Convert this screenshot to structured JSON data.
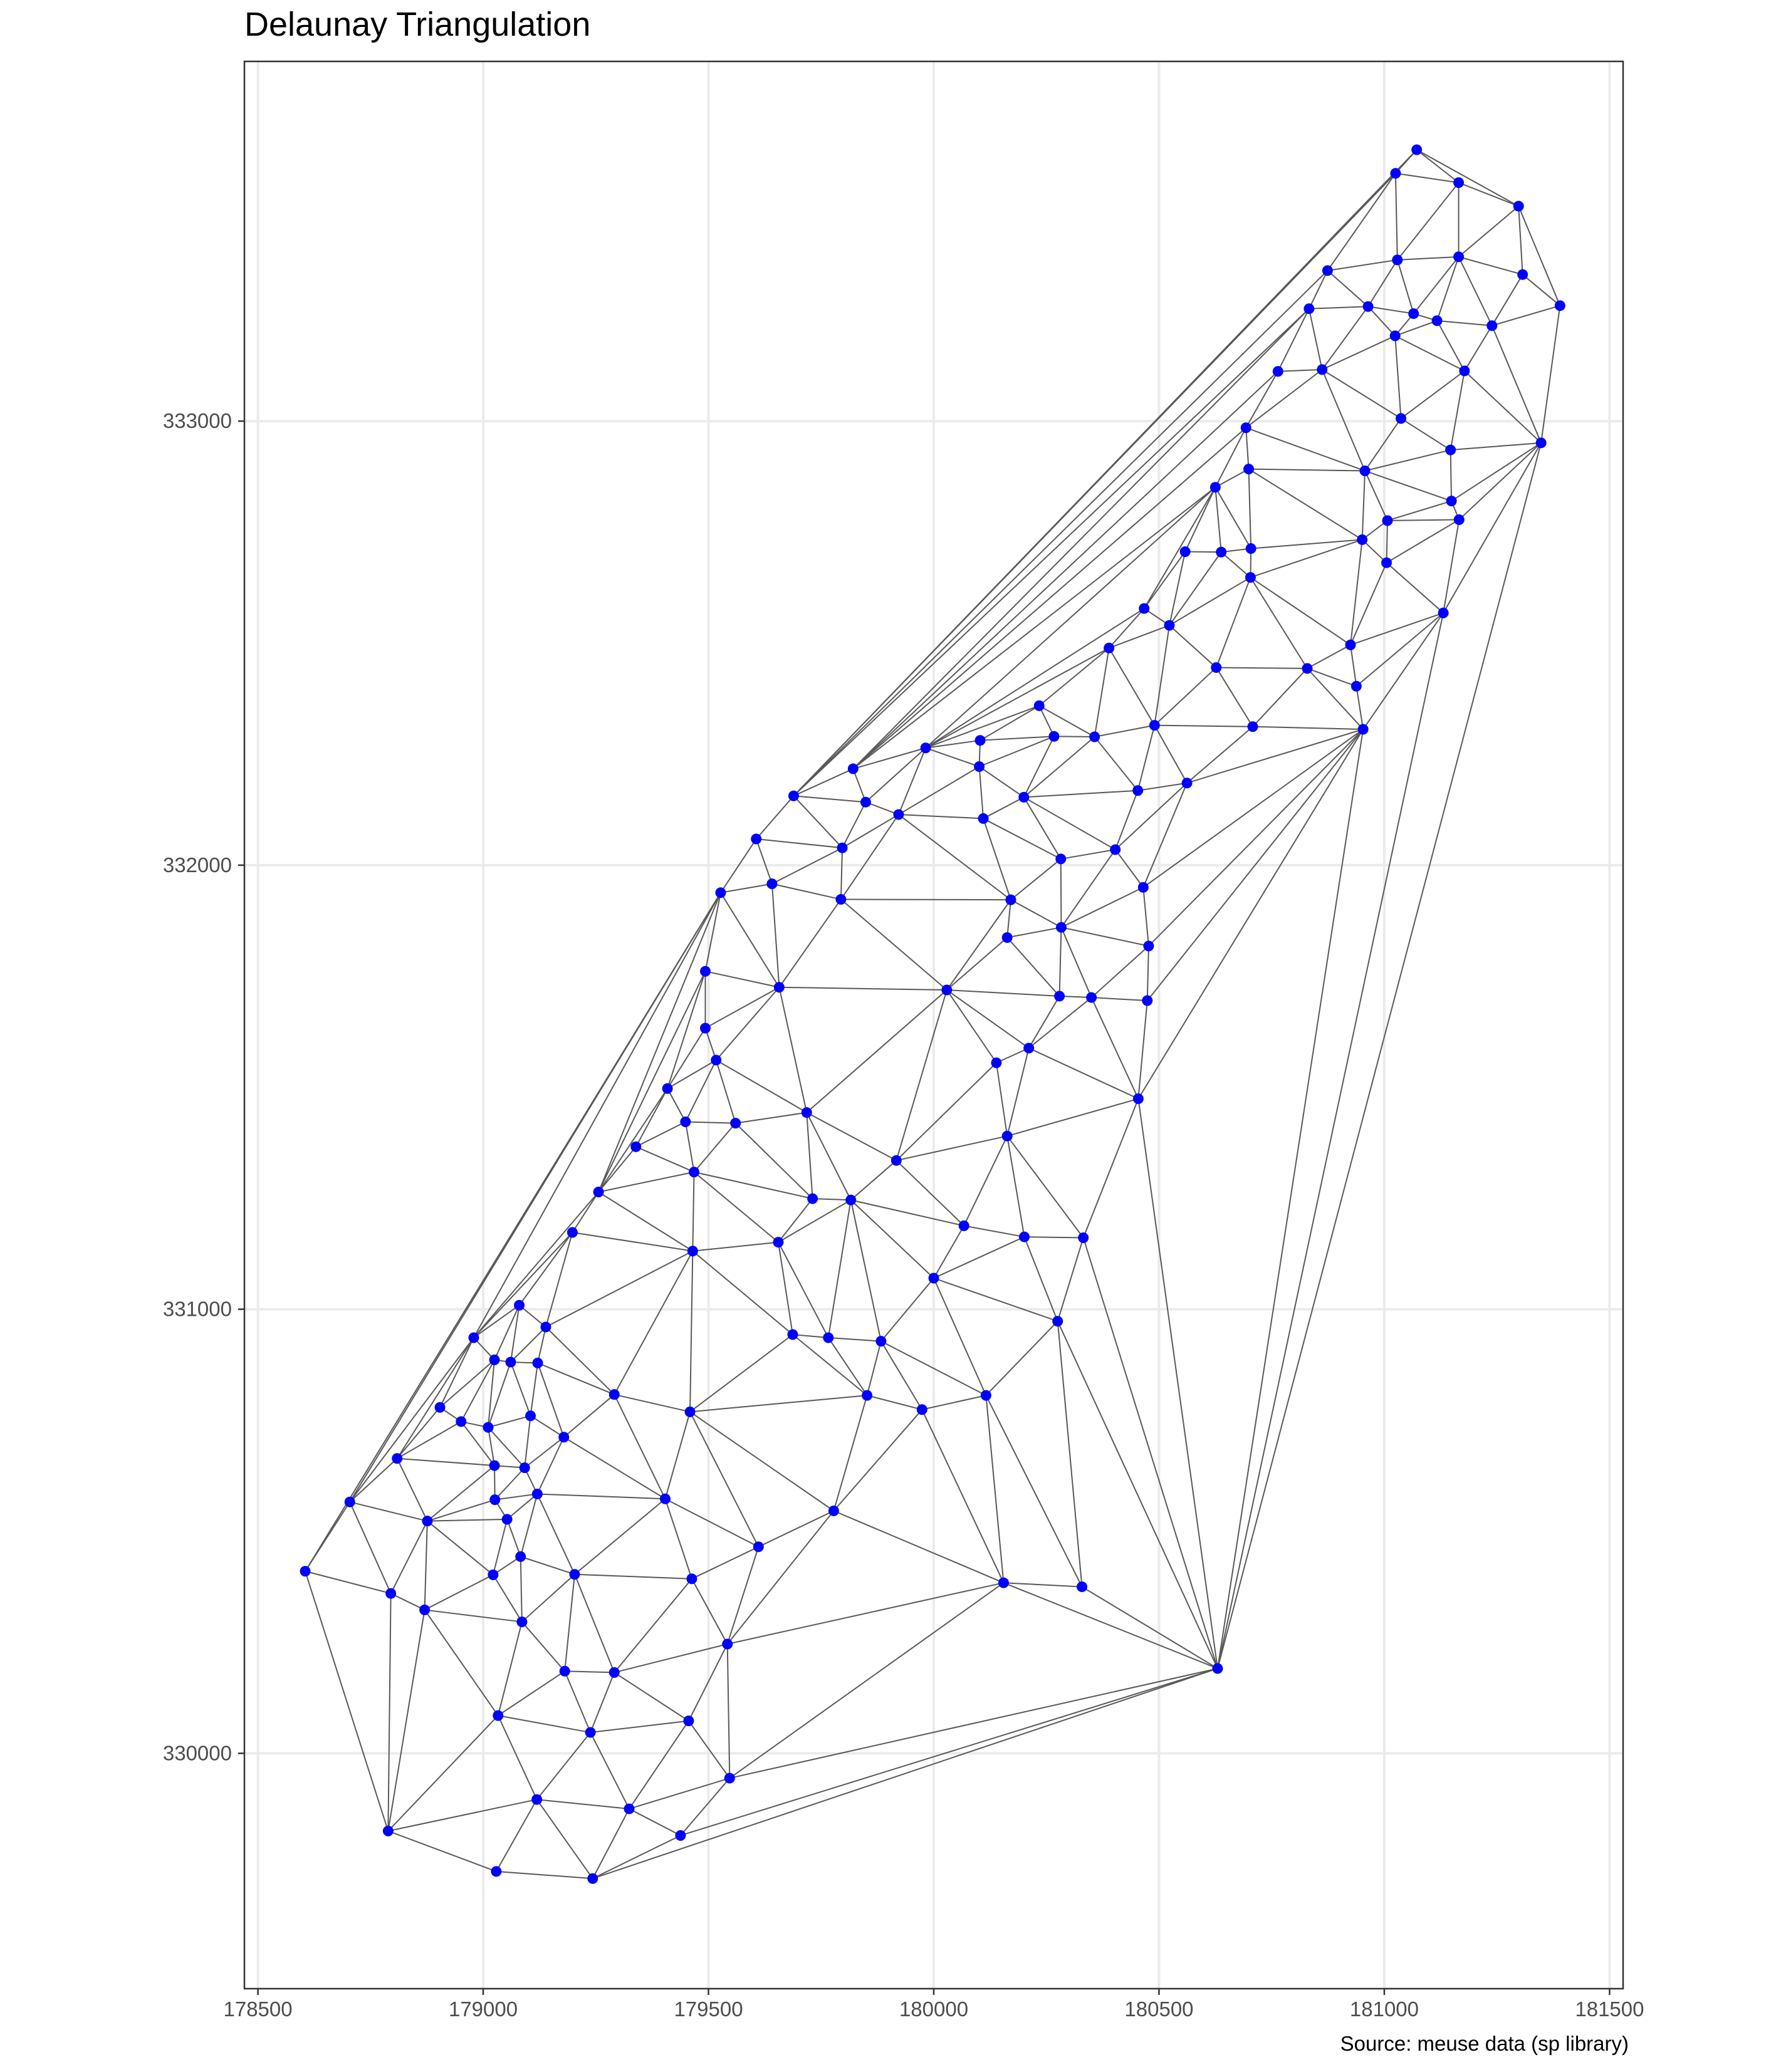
{
  "title": "Delaunay Triangulation",
  "caption": "Source: meuse data (sp library)",
  "colors": {
    "point": "#0000ff",
    "edge": "#595959",
    "grid": "#ebebeb",
    "panel_border": "#333333"
  },
  "chart_data": {
    "type": "scatter",
    "title": "Delaunay Triangulation",
    "xlabel": "",
    "ylabel": "",
    "xlim": [
      178470,
      181530
    ],
    "ylim": [
      329470,
      333810
    ],
    "xticks": [
      178500,
      179000,
      179500,
      180000,
      180500,
      181000,
      181500
    ],
    "yticks": [
      330000,
      331000,
      332000,
      333000
    ],
    "grid": true,
    "edges_drawn": "Delaunay triangulation of the points",
    "points": [
      [
        181072,
        333611
      ],
      [
        181025,
        333558
      ],
      [
        181165,
        333537
      ],
      [
        181298,
        333484
      ],
      [
        181307,
        333330
      ],
      [
        181390,
        333260
      ],
      [
        180874,
        333339
      ],
      [
        181029,
        333363
      ],
      [
        181165,
        333370
      ],
      [
        180833,
        333253
      ],
      [
        180964,
        333258
      ],
      [
        181065,
        333242
      ],
      [
        181117,
        333226
      ],
      [
        181239,
        333215
      ],
      [
        181024,
        333192
      ],
      [
        180764,
        333112
      ],
      [
        180862,
        333116
      ],
      [
        181178,
        333113
      ],
      [
        181037,
        333006
      ],
      [
        180693,
        332985
      ],
      [
        181348,
        332951
      ],
      [
        181147,
        332935
      ],
      [
        180699,
        332892
      ],
      [
        180957,
        332888
      ],
      [
        180625,
        332851
      ],
      [
        181149,
        332820
      ],
      [
        181007,
        332776
      ],
      [
        180951,
        332733
      ],
      [
        181166,
        332778
      ],
      [
        180558,
        332706
      ],
      [
        180638,
        332705
      ],
      [
        180704,
        332713
      ],
      [
        181005,
        332681
      ],
      [
        180703,
        332648
      ],
      [
        180467,
        332578
      ],
      [
        181131,
        332568
      ],
      [
        180523,
        332540
      ],
      [
        180925,
        332496
      ],
      [
        180389,
        332489
      ],
      [
        180829,
        332443
      ],
      [
        180627,
        332445
      ],
      [
        180938,
        332403
      ],
      [
        180234,
        332359
      ],
      [
        180490,
        332315
      ],
      [
        180708,
        332312
      ],
      [
        180953,
        332306
      ],
      [
        180103,
        332281
      ],
      [
        180267,
        332290
      ],
      [
        180357,
        332289
      ],
      [
        179982,
        332264
      ],
      [
        179821,
        332217
      ],
      [
        180101,
        332222
      ],
      [
        180562,
        332185
      ],
      [
        179689,
        332156
      ],
      [
        179849,
        332142
      ],
      [
        180200,
        332153
      ],
      [
        180453,
        332168
      ],
      [
        179922,
        332114
      ],
      [
        180110,
        332105
      ],
      [
        179606,
        332059
      ],
      [
        179797,
        332039
      ],
      [
        180403,
        332035
      ],
      [
        180282,
        332014
      ],
      [
        179641,
        331958
      ],
      [
        180465,
        331950
      ],
      [
        179527,
        331938
      ],
      [
        179794,
        331923
      ],
      [
        180171,
        331922
      ],
      [
        180283,
        331860
      ],
      [
        180163,
        331837
      ],
      [
        180477,
        331818
      ],
      [
        179493,
        331761
      ],
      [
        179657,
        331725
      ],
      [
        180029,
        331719
      ],
      [
        180279,
        331705
      ],
      [
        180350,
        331702
      ],
      [
        180474,
        331695
      ],
      [
        179493,
        331633
      ],
      [
        179517,
        331561
      ],
      [
        180211,
        331588
      ],
      [
        180139,
        331555
      ],
      [
        179409,
        331497
      ],
      [
        180454,
        331474
      ],
      [
        179718,
        331443
      ],
      [
        179449,
        331422
      ],
      [
        179560,
        331419
      ],
      [
        180163,
        331390
      ],
      [
        179339,
        331366
      ],
      [
        179917,
        331335
      ],
      [
        179468,
        331309
      ],
      [
        179256,
        331264
      ],
      [
        179731,
        331249
      ],
      [
        179816,
        331246
      ],
      [
        180067,
        331188
      ],
      [
        179198,
        331173
      ],
      [
        180201,
        331163
      ],
      [
        180332,
        331161
      ],
      [
        179655,
        331151
      ],
      [
        179465,
        331131
      ],
      [
        180000,
        331070
      ],
      [
        179080,
        331009
      ],
      [
        179139,
        330960
      ],
      [
        180275,
        330973
      ],
      [
        178979,
        330936
      ],
      [
        179687,
        330943
      ],
      [
        179766,
        330936
      ],
      [
        179883,
        330928
      ],
      [
        179025,
        330886
      ],
      [
        179121,
        330879
      ],
      [
        179061,
        330881
      ],
      [
        179291,
        330808
      ],
      [
        179852,
        330806
      ],
      [
        180116,
        330806
      ],
      [
        179459,
        330769
      ],
      [
        179974,
        330774
      ],
      [
        178904,
        330779
      ],
      [
        179105,
        330760
      ],
      [
        178951,
        330747
      ],
      [
        179011,
        330734
      ],
      [
        179179,
        330712
      ],
      [
        178809,
        330664
      ],
      [
        179025,
        330648
      ],
      [
        179092,
        330643
      ],
      [
        178704,
        330566
      ],
      [
        179026,
        330571
      ],
      [
        179120,
        330584
      ],
      [
        179404,
        330573
      ],
      [
        179778,
        330546
      ],
      [
        178876,
        330523
      ],
      [
        179053,
        330527
      ],
      [
        179611,
        330465
      ],
      [
        179083,
        330443
      ],
      [
        178605,
        330410
      ],
      [
        179022,
        330402
      ],
      [
        179203,
        330403
      ],
      [
        179463,
        330393
      ],
      [
        180155,
        330384
      ],
      [
        180329,
        330375
      ],
      [
        178795,
        330360
      ],
      [
        178870,
        330323
      ],
      [
        179086,
        330296
      ],
      [
        179542,
        330246
      ],
      [
        180630,
        330191
      ],
      [
        179181,
        330185
      ],
      [
        179291,
        330182
      ],
      [
        179033,
        330085
      ],
      [
        179456,
        330073
      ],
      [
        179238,
        330047
      ],
      [
        179547,
        329944
      ],
      [
        179119,
        329896
      ],
      [
        179324,
        329875
      ],
      [
        178789,
        329825
      ],
      [
        179438,
        329815
      ],
      [
        179029,
        329734
      ],
      [
        179243,
        329718
      ]
    ]
  }
}
